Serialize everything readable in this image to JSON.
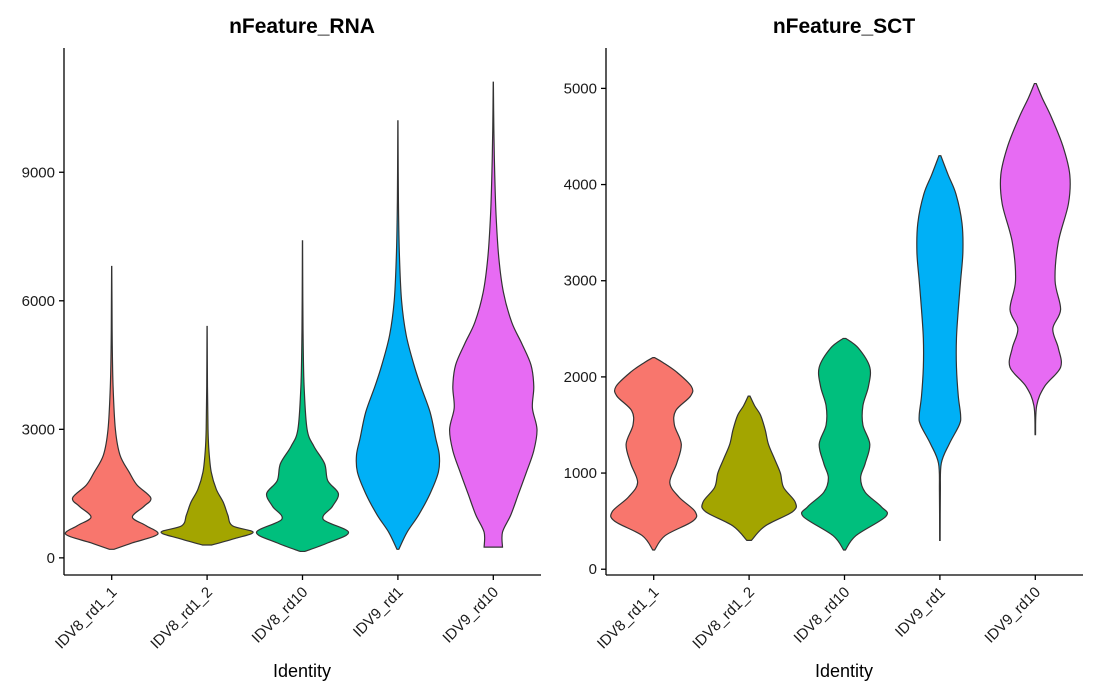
{
  "chart_data": [
    {
      "type": "violin",
      "title": "nFeature_RNA",
      "xlabel": "Identity",
      "ylabel": "",
      "categories": [
        "IDV8_rd1_1",
        "IDV8_rd1_2",
        "IDV8_rd10",
        "IDV9_rd1",
        "IDV9_rd10"
      ],
      "colors": [
        "#F8766D",
        "#A3A500",
        "#00BF7D",
        "#00B0F6",
        "#E76BF3"
      ],
      "yticks": [
        0,
        3000,
        6000,
        9000
      ],
      "ylim": [
        -400,
        11900
      ],
      "violins": [
        {
          "min": 200,
          "max": 6800,
          "profile": [
            [
              200,
              0.05
            ],
            [
              350,
              0.45
            ],
            [
              550,
              1.0
            ],
            [
              750,
              0.75
            ],
            [
              950,
              0.45
            ],
            [
              1200,
              0.7
            ],
            [
              1400,
              0.85
            ],
            [
              1700,
              0.55
            ],
            [
              2000,
              0.38
            ],
            [
              2400,
              0.18
            ],
            [
              3000,
              0.08
            ],
            [
              4000,
              0.03
            ],
            [
              5000,
              0.012
            ],
            [
              6000,
              0.006
            ],
            [
              6800,
              0.002
            ]
          ]
        },
        {
          "min": 300,
          "max": 5400,
          "profile": [
            [
              300,
              0.1
            ],
            [
              450,
              0.6
            ],
            [
              600,
              1.0
            ],
            [
              750,
              0.55
            ],
            [
              1000,
              0.45
            ],
            [
              1300,
              0.35
            ],
            [
              1600,
              0.2
            ],
            [
              2000,
              0.09
            ],
            [
              2500,
              0.04
            ],
            [
              3000,
              0.02
            ],
            [
              4000,
              0.008
            ],
            [
              5400,
              0.002
            ]
          ]
        },
        {
          "min": 150,
          "max": 7400,
          "profile": [
            [
              150,
              0.05
            ],
            [
              350,
              0.55
            ],
            [
              600,
              1.0
            ],
            [
              900,
              0.45
            ],
            [
              1200,
              0.65
            ],
            [
              1500,
              0.78
            ],
            [
              1800,
              0.55
            ],
            [
              2200,
              0.48
            ],
            [
              2600,
              0.25
            ],
            [
              3000,
              0.1
            ],
            [
              4000,
              0.035
            ],
            [
              5000,
              0.015
            ],
            [
              6000,
              0.007
            ],
            [
              7400,
              0.002
            ]
          ]
        },
        {
          "min": 200,
          "max": 10200,
          "profile": [
            [
              200,
              0.02
            ],
            [
              600,
              0.2
            ],
            [
              1000,
              0.45
            ],
            [
              1500,
              0.7
            ],
            [
              2000,
              0.88
            ],
            [
              2400,
              0.9
            ],
            [
              2800,
              0.82
            ],
            [
              3400,
              0.7
            ],
            [
              4000,
              0.5
            ],
            [
              4500,
              0.35
            ],
            [
              5200,
              0.18
            ],
            [
              6000,
              0.08
            ],
            [
              7000,
              0.035
            ],
            [
              8000,
              0.015
            ],
            [
              9000,
              0.007
            ],
            [
              10200,
              0.002
            ]
          ]
        },
        {
          "min": 250,
          "max": 11100,
          "profile": [
            [
              250,
              0.2
            ],
            [
              600,
              0.2
            ],
            [
              1000,
              0.38
            ],
            [
              1500,
              0.55
            ],
            [
              2000,
              0.72
            ],
            [
              2500,
              0.88
            ],
            [
              3000,
              0.95
            ],
            [
              3500,
              0.85
            ],
            [
              4000,
              0.88
            ],
            [
              4500,
              0.82
            ],
            [
              5000,
              0.62
            ],
            [
              5500,
              0.4
            ],
            [
              6200,
              0.22
            ],
            [
              7000,
              0.12
            ],
            [
              8000,
              0.06
            ],
            [
              9000,
              0.03
            ],
            [
              10000,
              0.012
            ],
            [
              11100,
              0.002
            ]
          ]
        }
      ]
    },
    {
      "type": "violin",
      "title": "nFeature_SCT",
      "xlabel": "Identity",
      "ylabel": "",
      "categories": [
        "IDV8_rd1_1",
        "IDV8_rd1_2",
        "IDV8_rd10",
        "IDV9_rd1",
        "IDV9_rd10"
      ],
      "colors": [
        "#F8766D",
        "#A3A500",
        "#00BF7D",
        "#00B0F6",
        "#E76BF3"
      ],
      "yticks": [
        0,
        1000,
        2000,
        3000,
        4000,
        5000
      ],
      "ylim": [
        -60,
        5420
      ],
      "violins": [
        {
          "min": 200,
          "max": 2200,
          "profile": [
            [
              200,
              0.02
            ],
            [
              350,
              0.25
            ],
            [
              500,
              0.85
            ],
            [
              600,
              0.9
            ],
            [
              750,
              0.55
            ],
            [
              900,
              0.35
            ],
            [
              1100,
              0.5
            ],
            [
              1300,
              0.6
            ],
            [
              1500,
              0.45
            ],
            [
              1650,
              0.48
            ],
            [
              1800,
              0.8
            ],
            [
              1900,
              0.82
            ],
            [
              2050,
              0.5
            ],
            [
              2150,
              0.2
            ],
            [
              2200,
              0.02
            ]
          ]
        },
        {
          "min": 300,
          "max": 1800,
          "profile": [
            [
              300,
              0.05
            ],
            [
              450,
              0.35
            ],
            [
              600,
              0.95
            ],
            [
              700,
              1.0
            ],
            [
              850,
              0.75
            ],
            [
              1000,
              0.68
            ],
            [
              1150,
              0.55
            ],
            [
              1300,
              0.42
            ],
            [
              1450,
              0.35
            ],
            [
              1600,
              0.25
            ],
            [
              1700,
              0.12
            ],
            [
              1800,
              0.02
            ]
          ]
        },
        {
          "min": 200,
          "max": 2400,
          "profile": [
            [
              200,
              0.02
            ],
            [
              350,
              0.25
            ],
            [
              550,
              0.9
            ],
            [
              650,
              0.8
            ],
            [
              800,
              0.45
            ],
            [
              950,
              0.35
            ],
            [
              1100,
              0.45
            ],
            [
              1300,
              0.55
            ],
            [
              1500,
              0.4
            ],
            [
              1700,
              0.4
            ],
            [
              1900,
              0.52
            ],
            [
              2100,
              0.55
            ],
            [
              2300,
              0.3
            ],
            [
              2400,
              0.03
            ]
          ]
        },
        {
          "min": 300,
          "max": 4300,
          "profile": [
            [
              300,
              0.005
            ],
            [
              800,
              0.01
            ],
            [
              1100,
              0.03
            ],
            [
              1300,
              0.2
            ],
            [
              1500,
              0.42
            ],
            [
              1600,
              0.45
            ],
            [
              1800,
              0.4
            ],
            [
              2100,
              0.36
            ],
            [
              2400,
              0.36
            ],
            [
              2700,
              0.4
            ],
            [
              3000,
              0.45
            ],
            [
              3300,
              0.5
            ],
            [
              3600,
              0.48
            ],
            [
              3900,
              0.35
            ],
            [
              4100,
              0.18
            ],
            [
              4300,
              0.02
            ]
          ]
        },
        {
          "min": 1400,
          "max": 5050,
          "profile": [
            [
              1400,
              0.005
            ],
            [
              1700,
              0.03
            ],
            [
              1900,
              0.2
            ],
            [
              2100,
              0.55
            ],
            [
              2300,
              0.5
            ],
            [
              2500,
              0.38
            ],
            [
              2700,
              0.55
            ],
            [
              3000,
              0.43
            ],
            [
              3400,
              0.5
            ],
            [
              3800,
              0.72
            ],
            [
              4100,
              0.75
            ],
            [
              4400,
              0.6
            ],
            [
              4700,
              0.35
            ],
            [
              4900,
              0.15
            ],
            [
              5050,
              0.02
            ]
          ]
        }
      ]
    }
  ]
}
